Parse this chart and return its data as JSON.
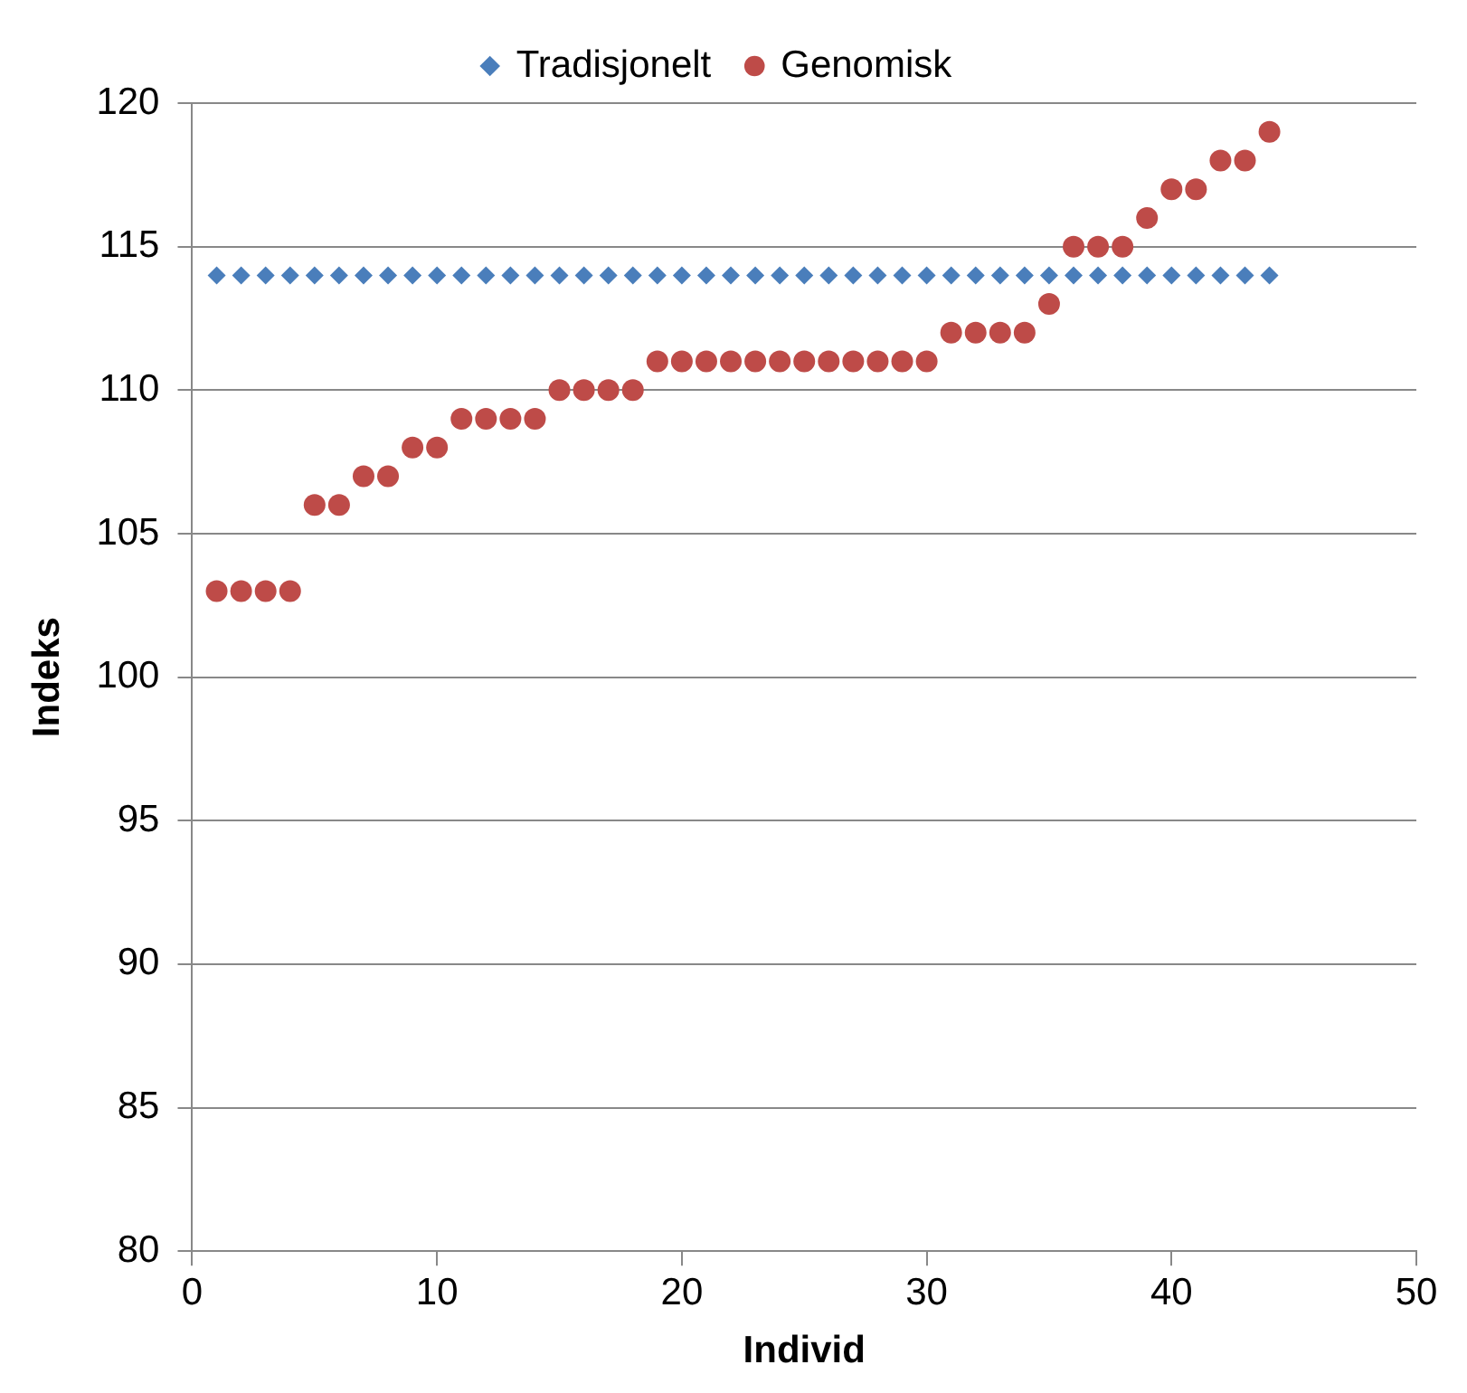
{
  "chart_data": {
    "type": "scatter",
    "xlabel": "Individ",
    "ylabel": "Indeks",
    "xlim": [
      0,
      50
    ],
    "xticks": [
      0,
      10,
      20,
      30,
      40,
      50
    ],
    "ylim": [
      80,
      120
    ],
    "yticks": [
      80,
      85,
      90,
      95,
      100,
      105,
      110,
      115,
      120
    ],
    "grid": "y",
    "legend": "top",
    "series": [
      {
        "name": "Tradisjonelt",
        "color": "#4a7ebb",
        "marker": "diamond",
        "x": [
          1,
          2,
          3,
          4,
          5,
          6,
          7,
          8,
          9,
          10,
          11,
          12,
          13,
          14,
          15,
          16,
          17,
          18,
          19,
          20,
          21,
          22,
          23,
          24,
          25,
          26,
          27,
          28,
          29,
          30,
          31,
          32,
          33,
          34,
          35,
          36,
          37,
          38,
          39,
          40,
          41,
          42,
          43,
          44
        ],
        "values": [
          114,
          114,
          114,
          114,
          114,
          114,
          114,
          114,
          114,
          114,
          114,
          114,
          114,
          114,
          114,
          114,
          114,
          114,
          114,
          114,
          114,
          114,
          114,
          114,
          114,
          114,
          114,
          114,
          114,
          114,
          114,
          114,
          114,
          114,
          114,
          114,
          114,
          114,
          114,
          114,
          114,
          114,
          114,
          114
        ]
      },
      {
        "name": "Genomisk",
        "color": "#be4b48",
        "marker": "circle",
        "x": [
          1,
          2,
          3,
          4,
          5,
          6,
          7,
          8,
          9,
          10,
          11,
          12,
          13,
          14,
          15,
          16,
          17,
          18,
          19,
          20,
          21,
          22,
          23,
          24,
          25,
          26,
          27,
          28,
          29,
          30,
          31,
          32,
          33,
          34,
          35,
          36,
          37,
          38,
          39,
          40,
          41,
          42,
          43,
          44
        ],
        "values": [
          103,
          103,
          103,
          103,
          106,
          106,
          107,
          107,
          108,
          108,
          109,
          109,
          109,
          109,
          110,
          110,
          110,
          110,
          111,
          111,
          111,
          111,
          111,
          111,
          111,
          111,
          111,
          111,
          111,
          111,
          112,
          112,
          112,
          112,
          113,
          115,
          115,
          115,
          116,
          117,
          117,
          118,
          118,
          119
        ]
      }
    ]
  }
}
